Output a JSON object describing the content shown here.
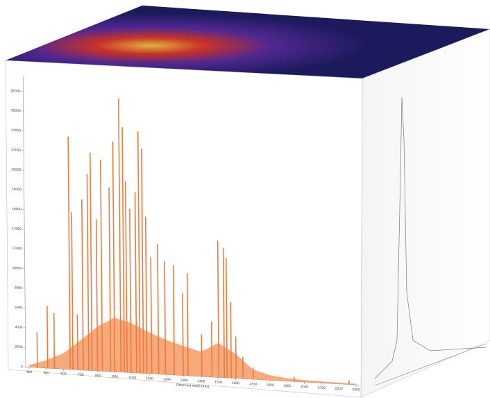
{
  "chart_data": {
    "type": "spectrum",
    "x_label": "Observed mass (m/z)",
    "x": [
      448,
      508,
      547,
      639,
      655,
      683,
      715,
      747,
      766,
      798,
      826,
      874,
      898,
      934,
      954,
      970,
      993,
      1025,
      1045,
      1065,
      1085,
      1113,
      1153,
      1193,
      1244,
      1296,
      1324,
      1404,
      1463,
      1503,
      1535,
      1551,
      1575,
      1603,
      1643,
      1702,
      1941,
      2260
    ],
    "values": [
      3578,
      6330,
      5642,
      23667,
      15962,
      5642,
      17338,
      19952,
      22154,
      15411,
      21466,
      18714,
      23392,
      27795,
      24906,
      19402,
      16650,
      18370,
      24562,
      22842,
      15962,
      11834,
      13210,
      11490,
      11146,
      8394,
      10458,
      4266,
      5642,
      13898,
      13210,
      12178,
      7706,
      4266,
      2202,
      1170,
      482,
      413
    ],
    "envelope": {
      "x": [
        400,
        500,
        600,
        700,
        800,
        900,
        1000,
        1100,
        1200,
        1300,
        1400,
        1500,
        1600,
        1700,
        1800,
        1900,
        2000,
        2300
      ],
      "values": [
        200,
        800,
        1600,
        3000,
        4500,
        5500,
        5000,
        4200,
        3500,
        3000,
        2500,
        3500,
        2500,
        1000,
        500,
        300,
        200,
        100
      ]
    },
    "color": "#f07a3c",
    "envelope_color": "#f59a64",
    "xlim": [
      380,
      2320
    ],
    "ylim": [
      0,
      29500
    ],
    "xticks": [
      400,
      500,
      600,
      700,
      800,
      900,
      1000,
      1100,
      1200,
      1300,
      1400,
      1500,
      1600,
      1700,
      1800,
      1900,
      2000,
      2100,
      2200,
      2300
    ],
    "yticks": [
      0,
      2000,
      4000,
      6000,
      8000,
      10000,
      12000,
      14000,
      16000,
      18000,
      20000,
      22000,
      24000,
      26000,
      28000
    ]
  }
}
